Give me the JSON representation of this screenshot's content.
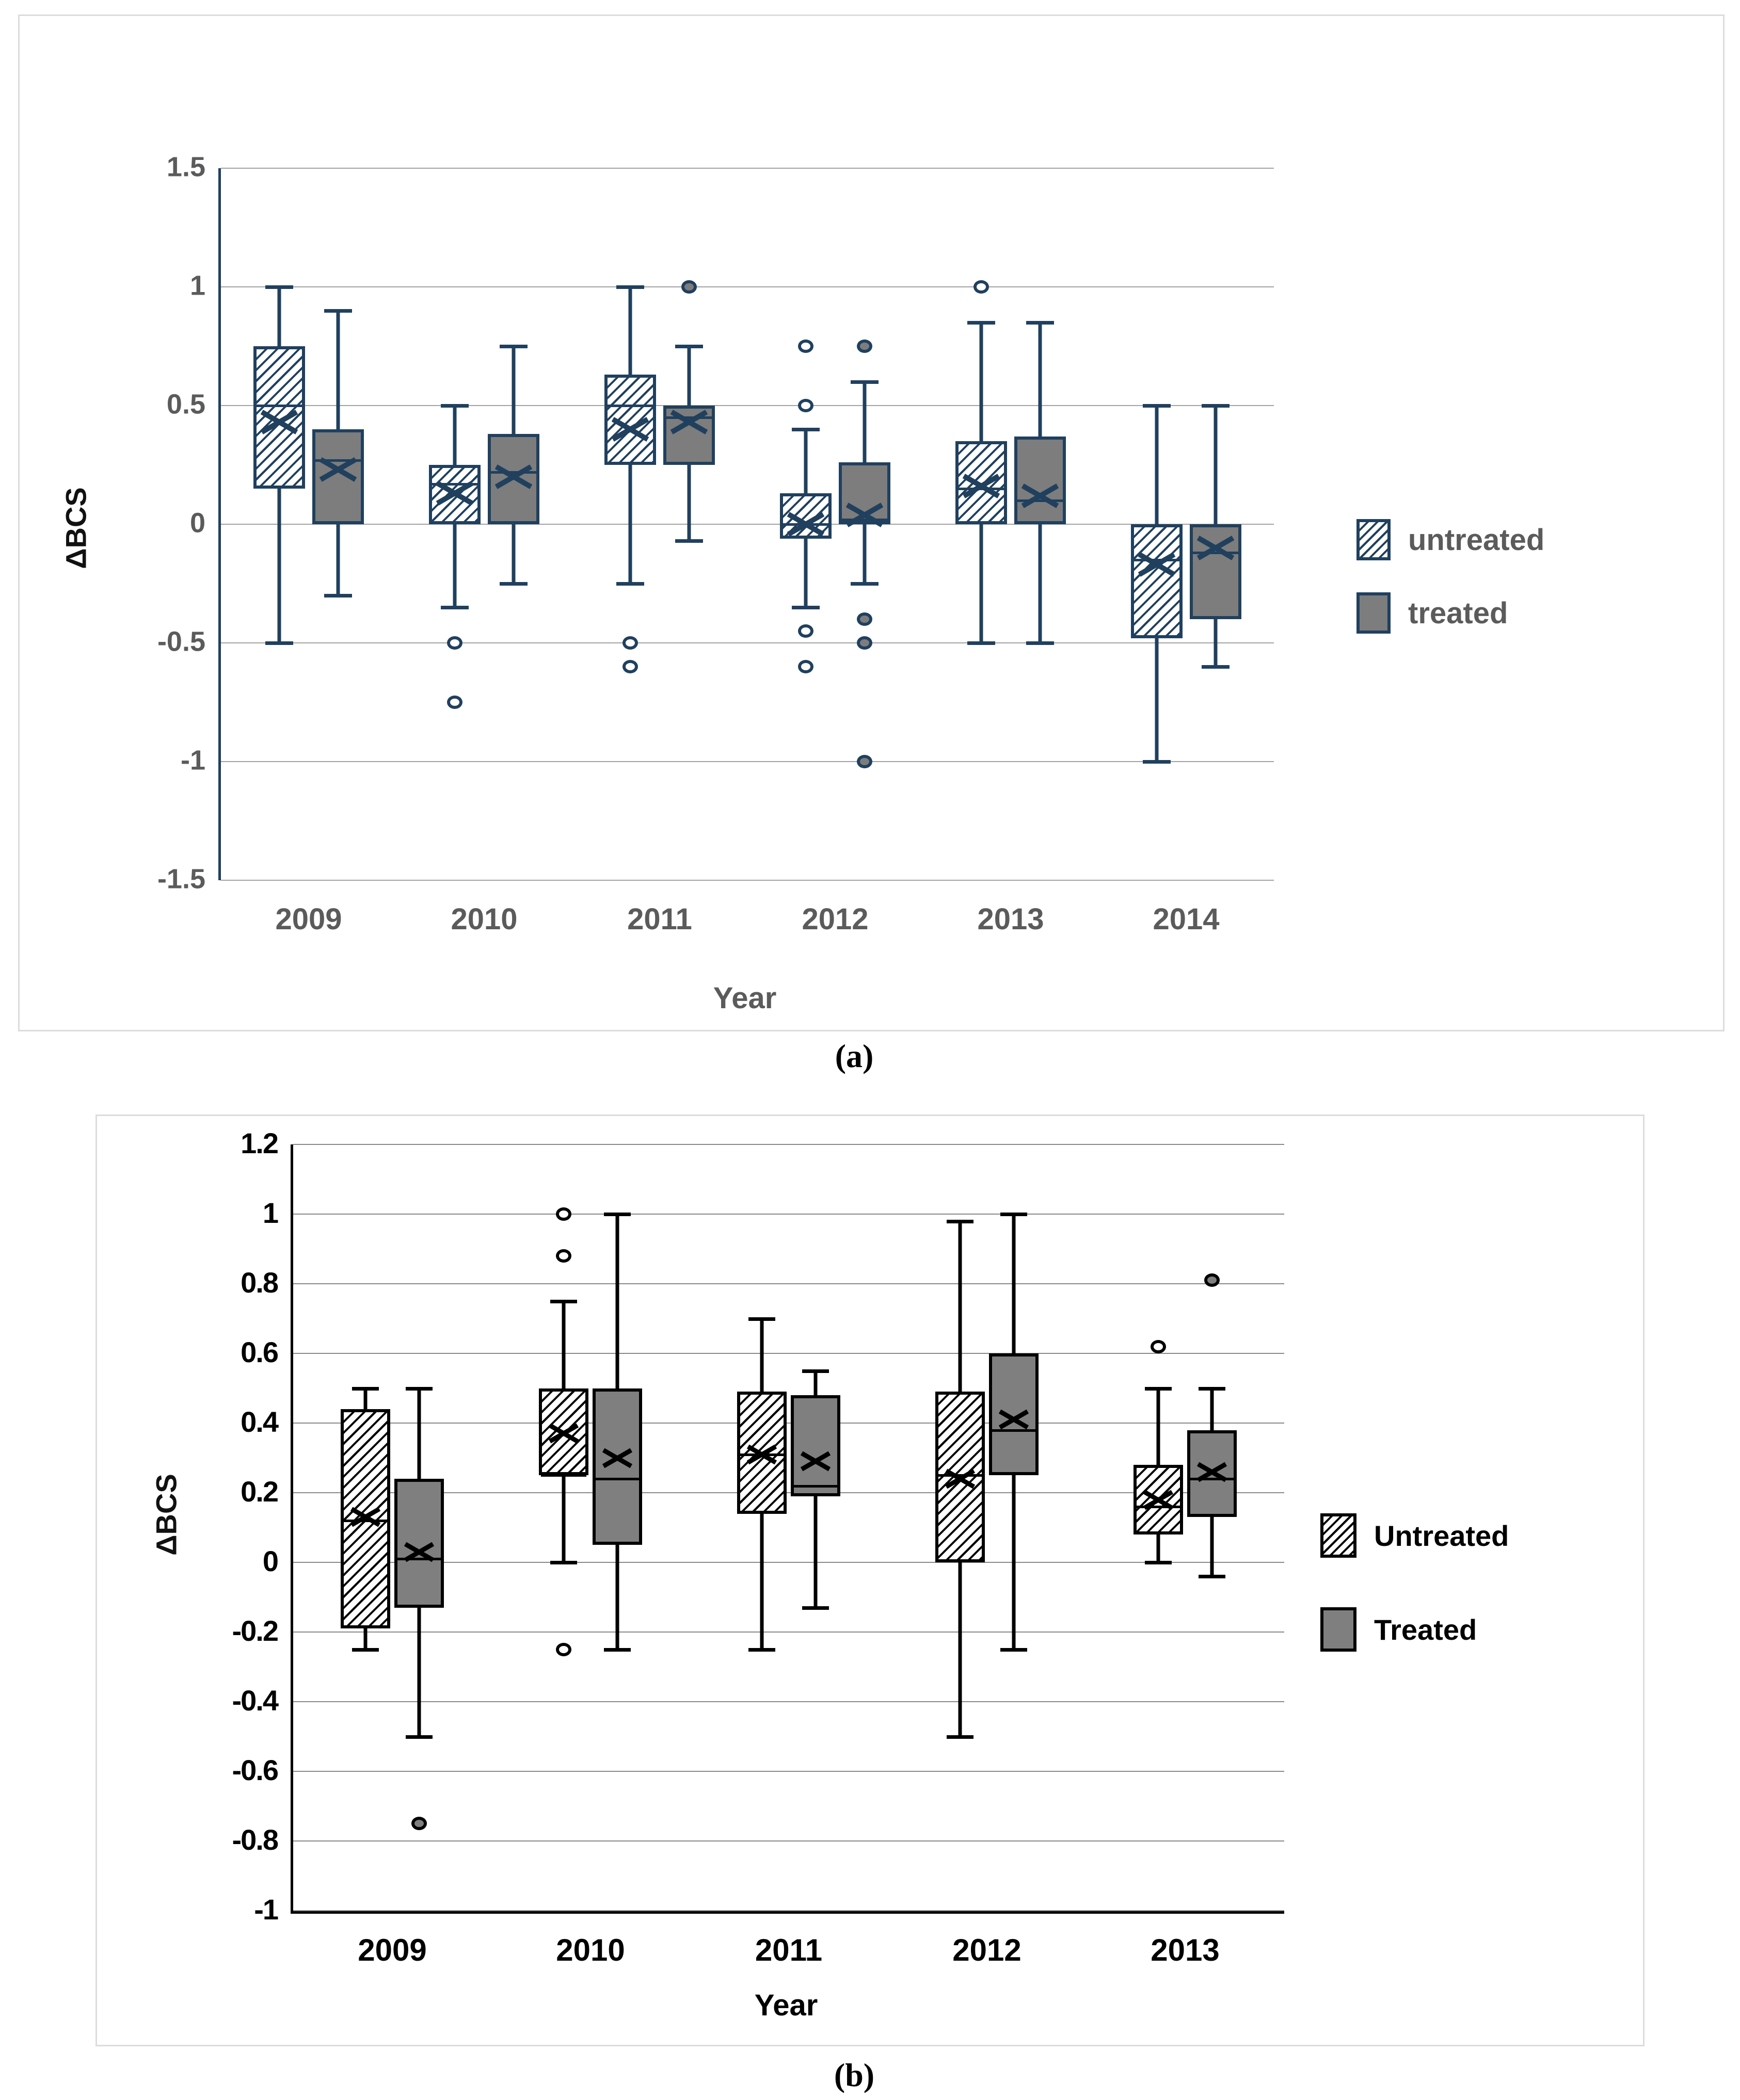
{
  "captions": {
    "a": "(a)",
    "b": "(b)"
  },
  "chart_data": [
    {
      "id": "a",
      "type": "boxplot",
      "title": "",
      "ylabel": "ΔBCS",
      "xlabel": "Year",
      "ylim": [
        -1.5,
        1.5
      ],
      "grid": true,
      "legend_position": "right",
      "yticks": [
        1.5,
        1,
        0.5,
        0,
        -0.5,
        -1,
        -1.5
      ],
      "ytick_labels": [
        "1.5",
        "1",
        "0.5",
        "0",
        "-0.5",
        "-1",
        "-1.5"
      ],
      "categories": [
        "2009",
        "2010",
        "2011",
        "2012",
        "2013",
        "2014"
      ],
      "colors": {
        "line": "#20405e",
        "gray_fill": "#7d7d7d",
        "grid": "#a3a3a3",
        "text": "#5b5b5b"
      },
      "legend": [
        {
          "label": "untreated",
          "swatch": "hatch"
        },
        {
          "label": "treated",
          "swatch": "gray"
        }
      ],
      "series": [
        {
          "name": "untreated",
          "fill": "hatch",
          "outlier_style": "open",
          "boxes": [
            {
              "low": -0.5,
              "q1": 0.15,
              "median": 0.5,
              "q3": 0.75,
              "high": 1.0,
              "mean": 0.43,
              "outliers": []
            },
            {
              "low": -0.35,
              "q1": 0.0,
              "median": 0.17,
              "q3": 0.25,
              "high": 0.5,
              "mean": 0.13,
              "outliers": [
                -0.5,
                -0.75
              ]
            },
            {
              "low": -0.25,
              "q1": 0.25,
              "median": 0.5,
              "q3": 0.63,
              "high": 1.0,
              "mean": 0.4,
              "outliers": [
                -0.5,
                -0.6
              ]
            },
            {
              "low": -0.35,
              "q1": -0.06,
              "median": 0.0,
              "q3": 0.13,
              "high": 0.4,
              "mean": 0.0,
              "outliers": [
                0.75,
                0.5,
                -0.45,
                -0.6
              ]
            },
            {
              "low": -0.5,
              "q1": 0.0,
              "median": 0.15,
              "q3": 0.35,
              "high": 0.85,
              "mean": 0.16,
              "outliers": [
                1.0
              ]
            },
            {
              "low": -1.0,
              "q1": -0.48,
              "median": -0.15,
              "q3": 0.0,
              "high": 0.5,
              "mean": -0.17,
              "outliers": []
            }
          ]
        },
        {
          "name": "treated",
          "fill": "gray",
          "outlier_style": "filled",
          "boxes": [
            {
              "low": -0.3,
              "q1": 0.0,
              "median": 0.27,
              "q3": 0.4,
              "high": 0.9,
              "mean": 0.23,
              "outliers": []
            },
            {
              "low": -0.25,
              "q1": 0.0,
              "median": 0.22,
              "q3": 0.38,
              "high": 0.75,
              "mean": 0.2,
              "outliers": []
            },
            {
              "low": -0.07,
              "q1": 0.25,
              "median": 0.45,
              "q3": 0.5,
              "high": 0.75,
              "mean": 0.43,
              "outliers": [
                1.0
              ]
            },
            {
              "low": -0.25,
              "q1": 0.0,
              "median": 0.02,
              "q3": 0.26,
              "high": 0.6,
              "mean": 0.04,
              "outliers": [
                0.75,
                -0.4,
                -0.5,
                -1.0
              ]
            },
            {
              "low": -0.5,
              "q1": 0.0,
              "median": 0.1,
              "q3": 0.37,
              "high": 0.85,
              "mean": 0.12,
              "outliers": []
            },
            {
              "low": -0.6,
              "q1": -0.4,
              "median": -0.12,
              "q3": 0.0,
              "high": 0.5,
              "mean": -0.1,
              "outliers": []
            }
          ]
        }
      ]
    },
    {
      "id": "b",
      "type": "boxplot",
      "title": "",
      "ylabel": "ΔBCS",
      "xlabel": "Year",
      "ylim": [
        -1,
        1.2
      ],
      "grid": true,
      "legend_position": "right",
      "yticks": [
        1.2,
        1,
        0.8,
        0.6,
        0.4,
        0.2,
        0,
        -0.2,
        -0.4,
        -0.6,
        -0.8,
        -1
      ],
      "ytick_labels": [
        "1.2",
        "1",
        "0.8",
        "0.6",
        "0.4",
        "0.2",
        "0",
        "-0.2",
        "-0.4",
        "-0.6",
        "-0.8",
        "-1"
      ],
      "categories": [
        "2009",
        "2010",
        "2011",
        "2012",
        "2013"
      ],
      "colors": {
        "line": "#000000",
        "gray_fill": "#7f7f7f",
        "grid": "#8a8a8a",
        "text": "#000000"
      },
      "legend": [
        {
          "label": "Untreated",
          "swatch": "hatch"
        },
        {
          "label": "Treated",
          "swatch": "gray"
        }
      ],
      "series": [
        {
          "name": "Untreated",
          "fill": "hatch",
          "outlier_style": "open",
          "boxes": [
            {
              "low": -0.25,
              "q1": -0.19,
              "median": 0.12,
              "q3": 0.44,
              "high": 0.5,
              "mean": 0.13,
              "outliers": []
            },
            {
              "low": 0.0,
              "q1": 0.25,
              "median": 0.25,
              "q3": 0.5,
              "high": 0.75,
              "mean": 0.37,
              "outliers": [
                1.0,
                0.88,
                -0.25
              ]
            },
            {
              "low": -0.25,
              "q1": 0.14,
              "median": 0.31,
              "q3": 0.49,
              "high": 0.7,
              "mean": 0.31,
              "outliers": []
            },
            {
              "low": -0.5,
              "q1": 0.0,
              "median": 0.25,
              "q3": 0.49,
              "high": 0.98,
              "mean": 0.24,
              "outliers": []
            },
            {
              "low": 0.0,
              "q1": 0.08,
              "median": 0.16,
              "q3": 0.28,
              "high": 0.5,
              "mean": 0.18,
              "outliers": [
                0.62
              ]
            }
          ]
        },
        {
          "name": "Treated",
          "fill": "gray",
          "outlier_style": "filled",
          "boxes": [
            {
              "low": -0.5,
              "q1": -0.13,
              "median": 0.01,
              "q3": 0.24,
              "high": 0.5,
              "mean": 0.03,
              "outliers": [
                -0.75
              ]
            },
            {
              "low": -0.25,
              "q1": 0.05,
              "median": 0.24,
              "q3": 0.5,
              "high": 1.0,
              "mean": 0.3,
              "outliers": []
            },
            {
              "low": -0.13,
              "q1": 0.19,
              "median": 0.22,
              "q3": 0.48,
              "high": 0.55,
              "mean": 0.29,
              "outliers": []
            },
            {
              "low": -0.25,
              "q1": 0.25,
              "median": 0.38,
              "q3": 0.6,
              "high": 1.0,
              "mean": 0.41,
              "outliers": []
            },
            {
              "low": -0.04,
              "q1": 0.13,
              "median": 0.24,
              "q3": 0.38,
              "high": 0.5,
              "mean": 0.26,
              "outliers": [
                0.81
              ]
            }
          ]
        }
      ]
    }
  ]
}
